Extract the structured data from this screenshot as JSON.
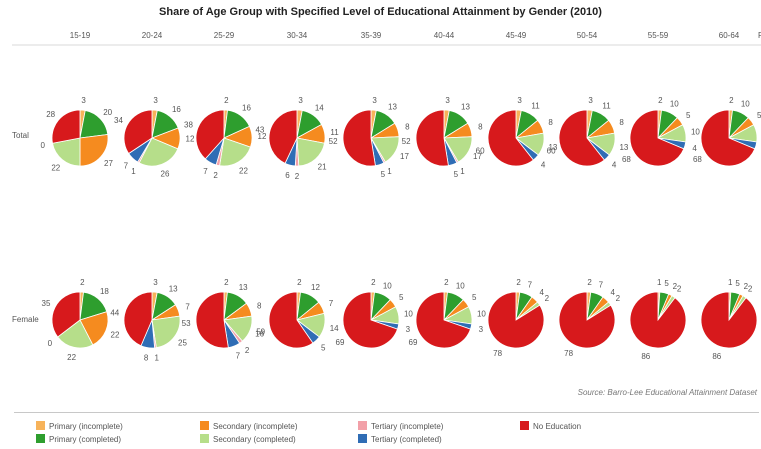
{
  "title": "Share of Age Group with Specified Level of Educational Attainment by Gender (2010)",
  "source": "Source: Barro-Lee Educational Attainment Dataset",
  "truncated_column_label": "F",
  "colors": {
    "Primary (incomplete)": "#F7B35A",
    "Primary (completed)": "#2E9E2E",
    "Secondary (incomplete)": "#F58B1F",
    "Secondary (completed)": "#B6DE8A",
    "Tertiary (incomplete)": "#F2A0A8",
    "Tertiary (completed)": "#2F6DB5",
    "No Education": "#D7191C"
  },
  "legend": [
    {
      "label": "Primary (incomplete)",
      "color": "#F7B35A"
    },
    {
      "label": "Primary (completed)",
      "color": "#2E9E2E"
    },
    {
      "label": "Secondary (incomplete)",
      "color": "#F58B1F"
    },
    {
      "label": "Secondary (completed)",
      "color": "#B6DE8A"
    },
    {
      "label": "Tertiary (incomplete)",
      "color": "#F2A0A8"
    },
    {
      "label": "Tertiary (completed)",
      "color": "#2F6DB5"
    },
    {
      "label": "No Education",
      "color": "#D7191C"
    }
  ],
  "chart_data": {
    "type": "pie",
    "title": "Share of Age Group with Specified Level of Educational Attainment by Gender (2010)",
    "columns": [
      "15-19",
      "20-24",
      "25-29",
      "30-34",
      "35-39",
      "40-44",
      "45-49",
      "50-54",
      "55-59",
      "60-64"
    ],
    "rows": [
      "Total",
      "Female"
    ],
    "slice_order": [
      "Primary (incomplete)",
      "Primary (completed)",
      "Secondary (incomplete)",
      "Secondary (completed)",
      "Tertiary (incomplete)",
      "Tertiary (completed)",
      "No Education"
    ],
    "values": {
      "Total": [
        [
          3,
          20,
          27,
          22,
          0,
          0,
          28
        ],
        [
          3,
          16,
          12,
          26,
          1,
          7,
          34
        ],
        [
          2,
          16,
          12,
          22,
          2,
          7,
          38
        ],
        [
          3,
          14,
          11,
          21,
          2,
          6,
          43
        ],
        [
          3,
          13,
          8,
          17,
          1,
          5,
          52
        ],
        [
          3,
          13,
          8,
          17,
          1,
          5,
          52
        ],
        [
          3,
          11,
          8,
          13,
          0,
          4,
          60
        ],
        [
          3,
          11,
          8,
          13,
          0,
          4,
          60
        ],
        [
          2,
          10,
          5,
          10,
          0,
          4,
          68
        ],
        [
          2,
          10,
          5,
          10,
          0,
          4,
          68
        ]
      ],
      "Female": [
        [
          2,
          18,
          22,
          22,
          0,
          0,
          35
        ],
        [
          3,
          13,
          7,
          25,
          1,
          8,
          44
        ],
        [
          2,
          13,
          8,
          16,
          2,
          7,
          53
        ],
        [
          2,
          12,
          7,
          14,
          0,
          5,
          59
        ],
        [
          2,
          10,
          5,
          10,
          0,
          3,
          69
        ],
        [
          2,
          10,
          5,
          10,
          0,
          3,
          69
        ],
        [
          2,
          7,
          4,
          2,
          0,
          0,
          78
        ],
        [
          2,
          7,
          4,
          2,
          0,
          0,
          78
        ],
        [
          1,
          5,
          2,
          2,
          0,
          0,
          86
        ],
        [
          1,
          5,
          2,
          2,
          0,
          0,
          86
        ]
      ]
    },
    "labels": {
      "Total": [
        [
          "3",
          "20",
          "27",
          "22",
          "0",
          "",
          "28"
        ],
        [
          "3",
          "16",
          "12",
          "26",
          "1",
          "7",
          "34"
        ],
        [
          "2",
          "16",
          "12",
          "22",
          "2",
          "7",
          "38"
        ],
        [
          "3",
          "14",
          "11",
          "21",
          "2",
          "6",
          "43"
        ],
        [
          "3",
          "13",
          "8",
          "17",
          "1",
          "5",
          "52"
        ],
        [
          "3",
          "13",
          "8",
          "17",
          "1",
          "5",
          "52"
        ],
        [
          "3",
          "11",
          "8",
          "13",
          "",
          "4",
          "60"
        ],
        [
          "3",
          "11",
          "8",
          "13",
          "",
          "4",
          "60"
        ],
        [
          "2",
          "10",
          "5",
          "10",
          "",
          "4",
          "68"
        ],
        [
          "2",
          "10",
          "5",
          "",
          "",
          "4",
          "68"
        ]
      ],
      "Female": [
        [
          "2",
          "18",
          "22",
          "22",
          "0",
          "",
          "35"
        ],
        [
          "3",
          "13",
          "7",
          "25",
          "1",
          "8",
          "44"
        ],
        [
          "2",
          "13",
          "8",
          "16",
          "2",
          "7",
          "53"
        ],
        [
          "2",
          "12",
          "7",
          "14",
          "",
          "5",
          "59"
        ],
        [
          "2",
          "10",
          "5",
          "10",
          "",
          "3",
          "69"
        ],
        [
          "2",
          "10",
          "5",
          "10",
          "",
          "3",
          "69"
        ],
        [
          "2",
          "7",
          "4",
          "2",
          "",
          "",
          "78"
        ],
        [
          "2",
          "7",
          "4",
          "2",
          "",
          "",
          "78"
        ],
        [
          "1",
          "5",
          "2",
          "2",
          "",
          "",
          "86"
        ],
        [
          "1",
          "5",
          "2",
          "2",
          "",
          "",
          "86"
        ]
      ]
    }
  }
}
